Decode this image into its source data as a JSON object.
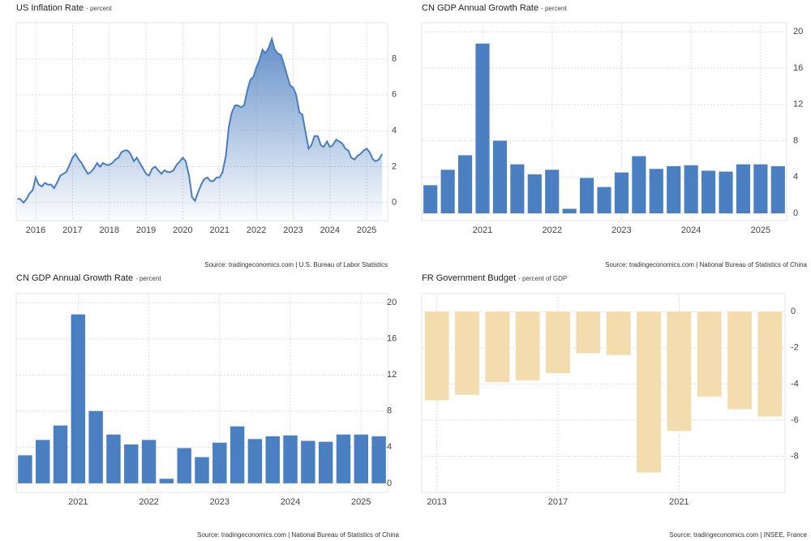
{
  "chart_data": [
    {
      "type": "line",
      "title": "US Inflation Rate",
      "subtitle": "- percent",
      "source": "Source: tradingeconomics.com | U.S. Bureau of Labor Statistics",
      "x": [
        2015.5,
        2015.58,
        2015.67,
        2015.75,
        2015.83,
        2015.92,
        2016.0,
        2016.08,
        2016.17,
        2016.25,
        2016.33,
        2016.42,
        2016.5,
        2016.58,
        2016.67,
        2016.75,
        2016.83,
        2016.92,
        2017.0,
        2017.08,
        2017.17,
        2017.25,
        2017.33,
        2017.42,
        2017.5,
        2017.58,
        2017.67,
        2017.75,
        2017.83,
        2017.92,
        2018.0,
        2018.08,
        2018.17,
        2018.25,
        2018.33,
        2018.42,
        2018.5,
        2018.58,
        2018.67,
        2018.75,
        2018.83,
        2018.92,
        2019.0,
        2019.08,
        2019.17,
        2019.25,
        2019.33,
        2019.42,
        2019.5,
        2019.58,
        2019.67,
        2019.75,
        2019.83,
        2019.92,
        2020.0,
        2020.08,
        2020.17,
        2020.25,
        2020.33,
        2020.42,
        2020.5,
        2020.58,
        2020.67,
        2020.75,
        2020.83,
        2020.92,
        2021.0,
        2021.08,
        2021.17,
        2021.25,
        2021.33,
        2021.42,
        2021.5,
        2021.58,
        2021.67,
        2021.75,
        2021.83,
        2021.92,
        2022.0,
        2022.08,
        2022.17,
        2022.25,
        2022.33,
        2022.42,
        2022.5,
        2022.58,
        2022.67,
        2022.75,
        2022.83,
        2022.92,
        2023.0,
        2023.08,
        2023.17,
        2023.25,
        2023.33,
        2023.42,
        2023.5,
        2023.58,
        2023.67,
        2023.75,
        2023.83,
        2023.92,
        2024.0,
        2024.08,
        2024.17,
        2024.25,
        2024.33,
        2024.42,
        2024.5,
        2024.58,
        2024.67,
        2024.75,
        2024.83,
        2024.92,
        2025.0,
        2025.08,
        2025.17,
        2025.25,
        2025.33,
        2025.42
      ],
      "values": [
        0.2,
        0.2,
        0.0,
        0.2,
        0.5,
        0.7,
        1.4,
        1.0,
        0.9,
        1.1,
        1.0,
        1.0,
        0.8,
        1.1,
        1.5,
        1.6,
        1.7,
        2.1,
        2.5,
        2.7,
        2.4,
        2.2,
        1.9,
        1.6,
        1.7,
        1.9,
        2.2,
        2.0,
        2.2,
        2.1,
        2.1,
        2.2,
        2.4,
        2.5,
        2.8,
        2.9,
        2.9,
        2.7,
        2.3,
        2.5,
        2.2,
        1.9,
        1.6,
        1.5,
        1.9,
        2.0,
        1.8,
        1.6,
        1.8,
        1.7,
        1.7,
        1.8,
        2.1,
        2.3,
        2.5,
        2.3,
        1.5,
        0.3,
        0.1,
        0.6,
        1.0,
        1.3,
        1.4,
        1.2,
        1.2,
        1.4,
        1.4,
        1.7,
        2.6,
        4.2,
        5.0,
        5.4,
        5.4,
        5.3,
        5.4,
        6.2,
        6.8,
        7.0,
        7.5,
        7.9,
        8.5,
        8.3,
        8.6,
        9.1,
        8.5,
        8.3,
        8.2,
        7.7,
        7.1,
        6.5,
        6.4,
        6.0,
        5.0,
        4.9,
        4.0,
        3.0,
        3.2,
        3.7,
        3.7,
        3.2,
        3.1,
        3.4,
        3.1,
        3.2,
        3.5,
        3.4,
        3.3,
        3.0,
        2.9,
        2.5,
        2.4,
        2.6,
        2.7,
        2.9,
        3.0,
        2.8,
        2.4,
        2.3,
        2.4,
        2.7
      ],
      "color": "#4a7dbf",
      "xlim": [
        2015.47,
        2025.57
      ],
      "xticks": [
        2016,
        2017,
        2018,
        2019,
        2020,
        2021,
        2022,
        2023,
        2024,
        2025
      ],
      "ylim": [
        -1,
        10
      ],
      "yticks": [
        0,
        2,
        4,
        6,
        8
      ],
      "grid": true
    },
    {
      "type": "bar",
      "title": "CN GDP Annual Growth Rate",
      "subtitle": "- percent",
      "source": "Source: tradingeconomics.com | National Bureau of Statistics of China",
      "categories": [
        null,
        null,
        null,
        "2021",
        null,
        null,
        null,
        "2022",
        null,
        null,
        null,
        "2023",
        null,
        null,
        null,
        "2024",
        null,
        null,
        null,
        "2025",
        null
      ],
      "values": [
        3.1,
        4.8,
        6.4,
        18.7,
        8.0,
        5.4,
        4.3,
        4.8,
        0.5,
        3.9,
        2.9,
        4.5,
        6.3,
        4.9,
        5.2,
        5.3,
        4.7,
        4.6,
        5.4,
        5.4,
        5.2
      ],
      "color": "#4a7fc1",
      "ylim": [
        -0.8,
        21
      ],
      "yticks": [
        0,
        4,
        8,
        12,
        16,
        20
      ],
      "grid": true
    },
    {
      "type": "bar",
      "title": "CN GDP Annual Growth Rate",
      "subtitle": "- percent",
      "source": "Source: tradingeconomics.com | National Bureau of Statistics of China",
      "categories": [
        null,
        null,
        null,
        "2021",
        null,
        null,
        null,
        "2022",
        null,
        null,
        null,
        "2023",
        null,
        null,
        null,
        "2024",
        null,
        null,
        null,
        "2025",
        null
      ],
      "values": [
        3.1,
        4.8,
        6.4,
        18.7,
        8.0,
        5.4,
        4.3,
        4.8,
        0.5,
        3.9,
        2.9,
        4.5,
        6.3,
        4.9,
        5.2,
        5.3,
        4.7,
        4.6,
        5.4,
        5.4,
        5.2
      ],
      "color": "#4a7fc1",
      "ylim": [
        -1,
        21
      ],
      "yticks": [
        0,
        4,
        8,
        12,
        16,
        20
      ],
      "grid": true
    },
    {
      "type": "bar",
      "title": "FR Government Budget",
      "subtitle": "- percent of GDP",
      "source": "Source: tradingeconomics.com | INSEE, France",
      "categories": [
        "2013",
        null,
        null,
        null,
        "2017",
        null,
        null,
        null,
        "2021",
        null,
        null,
        null
      ],
      "values": [
        -4.9,
        -4.6,
        -3.9,
        -3.8,
        -3.4,
        -2.3,
        -2.4,
        -8.9,
        -6.6,
        -4.7,
        -5.4,
        -5.8
      ],
      "color": "#f3dcae",
      "ylim": [
        -10,
        1
      ],
      "yticks": [
        0,
        -2,
        -4,
        -6,
        -8
      ],
      "grid": true
    }
  ]
}
